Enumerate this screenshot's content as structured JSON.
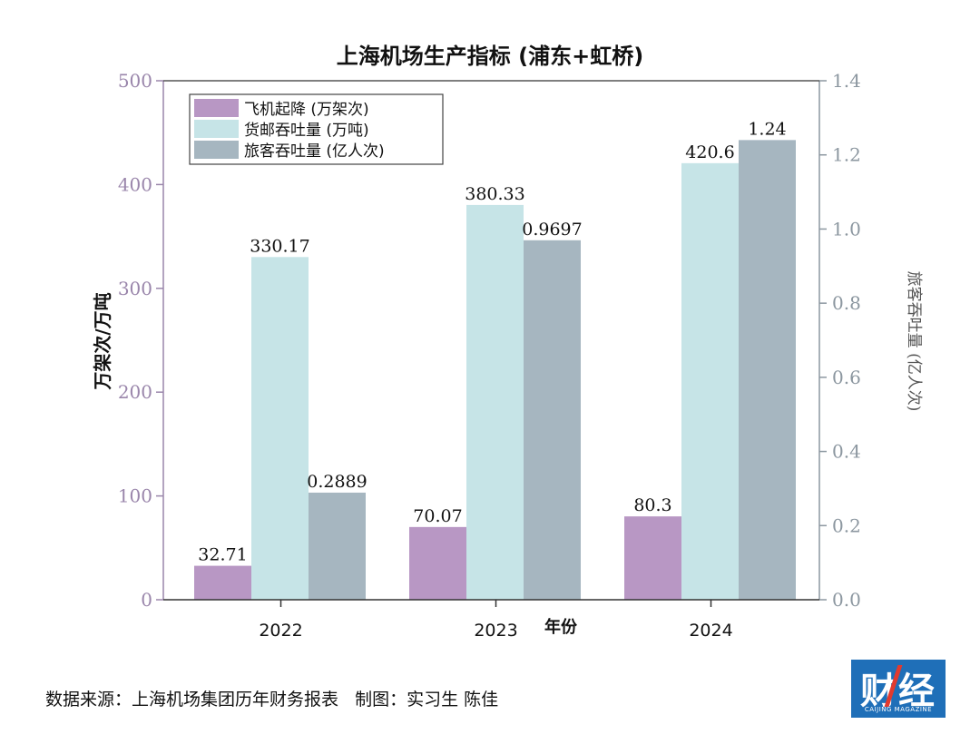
{
  "chart_data": {
    "type": "bar",
    "title": "上海机场生产指标 (浦东+虹桥)",
    "xlabel": "年份",
    "ylabel_left": "万架次/万吨",
    "ylabel_right": "旅客吞吐量 (亿人次)",
    "categories": [
      "2022",
      "2023",
      "2024"
    ],
    "ylim_left": [
      0,
      500
    ],
    "yticks_left": [
      "0",
      "100",
      "200",
      "300",
      "400",
      "500"
    ],
    "ylim_right": [
      0,
      1.4
    ],
    "yticks_right": [
      "0.0",
      "0.2",
      "0.4",
      "0.6",
      "0.8",
      "1.0",
      "1.2",
      "1.4"
    ],
    "grid": false,
    "legend_position": "top-left",
    "series": [
      {
        "name": "飞机起降 (万架次)",
        "axis": "left",
        "color": "#b897c4",
        "values": [
          32.71,
          70.07,
          80.3
        ],
        "labels": [
          "32.71",
          "70.07",
          "80.3"
        ]
      },
      {
        "name": "货邮吞吐量 (万吨)",
        "axis": "left",
        "color": "#c6e4e7",
        "values": [
          330.17,
          380.33,
          420.6
        ],
        "labels": [
          "330.17",
          "380.33",
          "420.6"
        ]
      },
      {
        "name": "旅客吞吐量 (亿人次)",
        "axis": "right",
        "color": "#a6b6c0",
        "values": [
          0.2889,
          0.9697,
          1.24
        ],
        "labels": [
          "0.2889",
          "0.9697",
          "1.24"
        ]
      }
    ]
  },
  "footer": {
    "source": "数据来源：上海机场集团历年财务报表   制图：实习生 陈佳"
  },
  "logo": {
    "text": "财经",
    "subtext": "CAIJING MAGAZINE"
  },
  "colors": {
    "left_axis": "#9a86ab",
    "right_axis": "#8c97a0",
    "logo_bg": "#1f6fb8"
  }
}
